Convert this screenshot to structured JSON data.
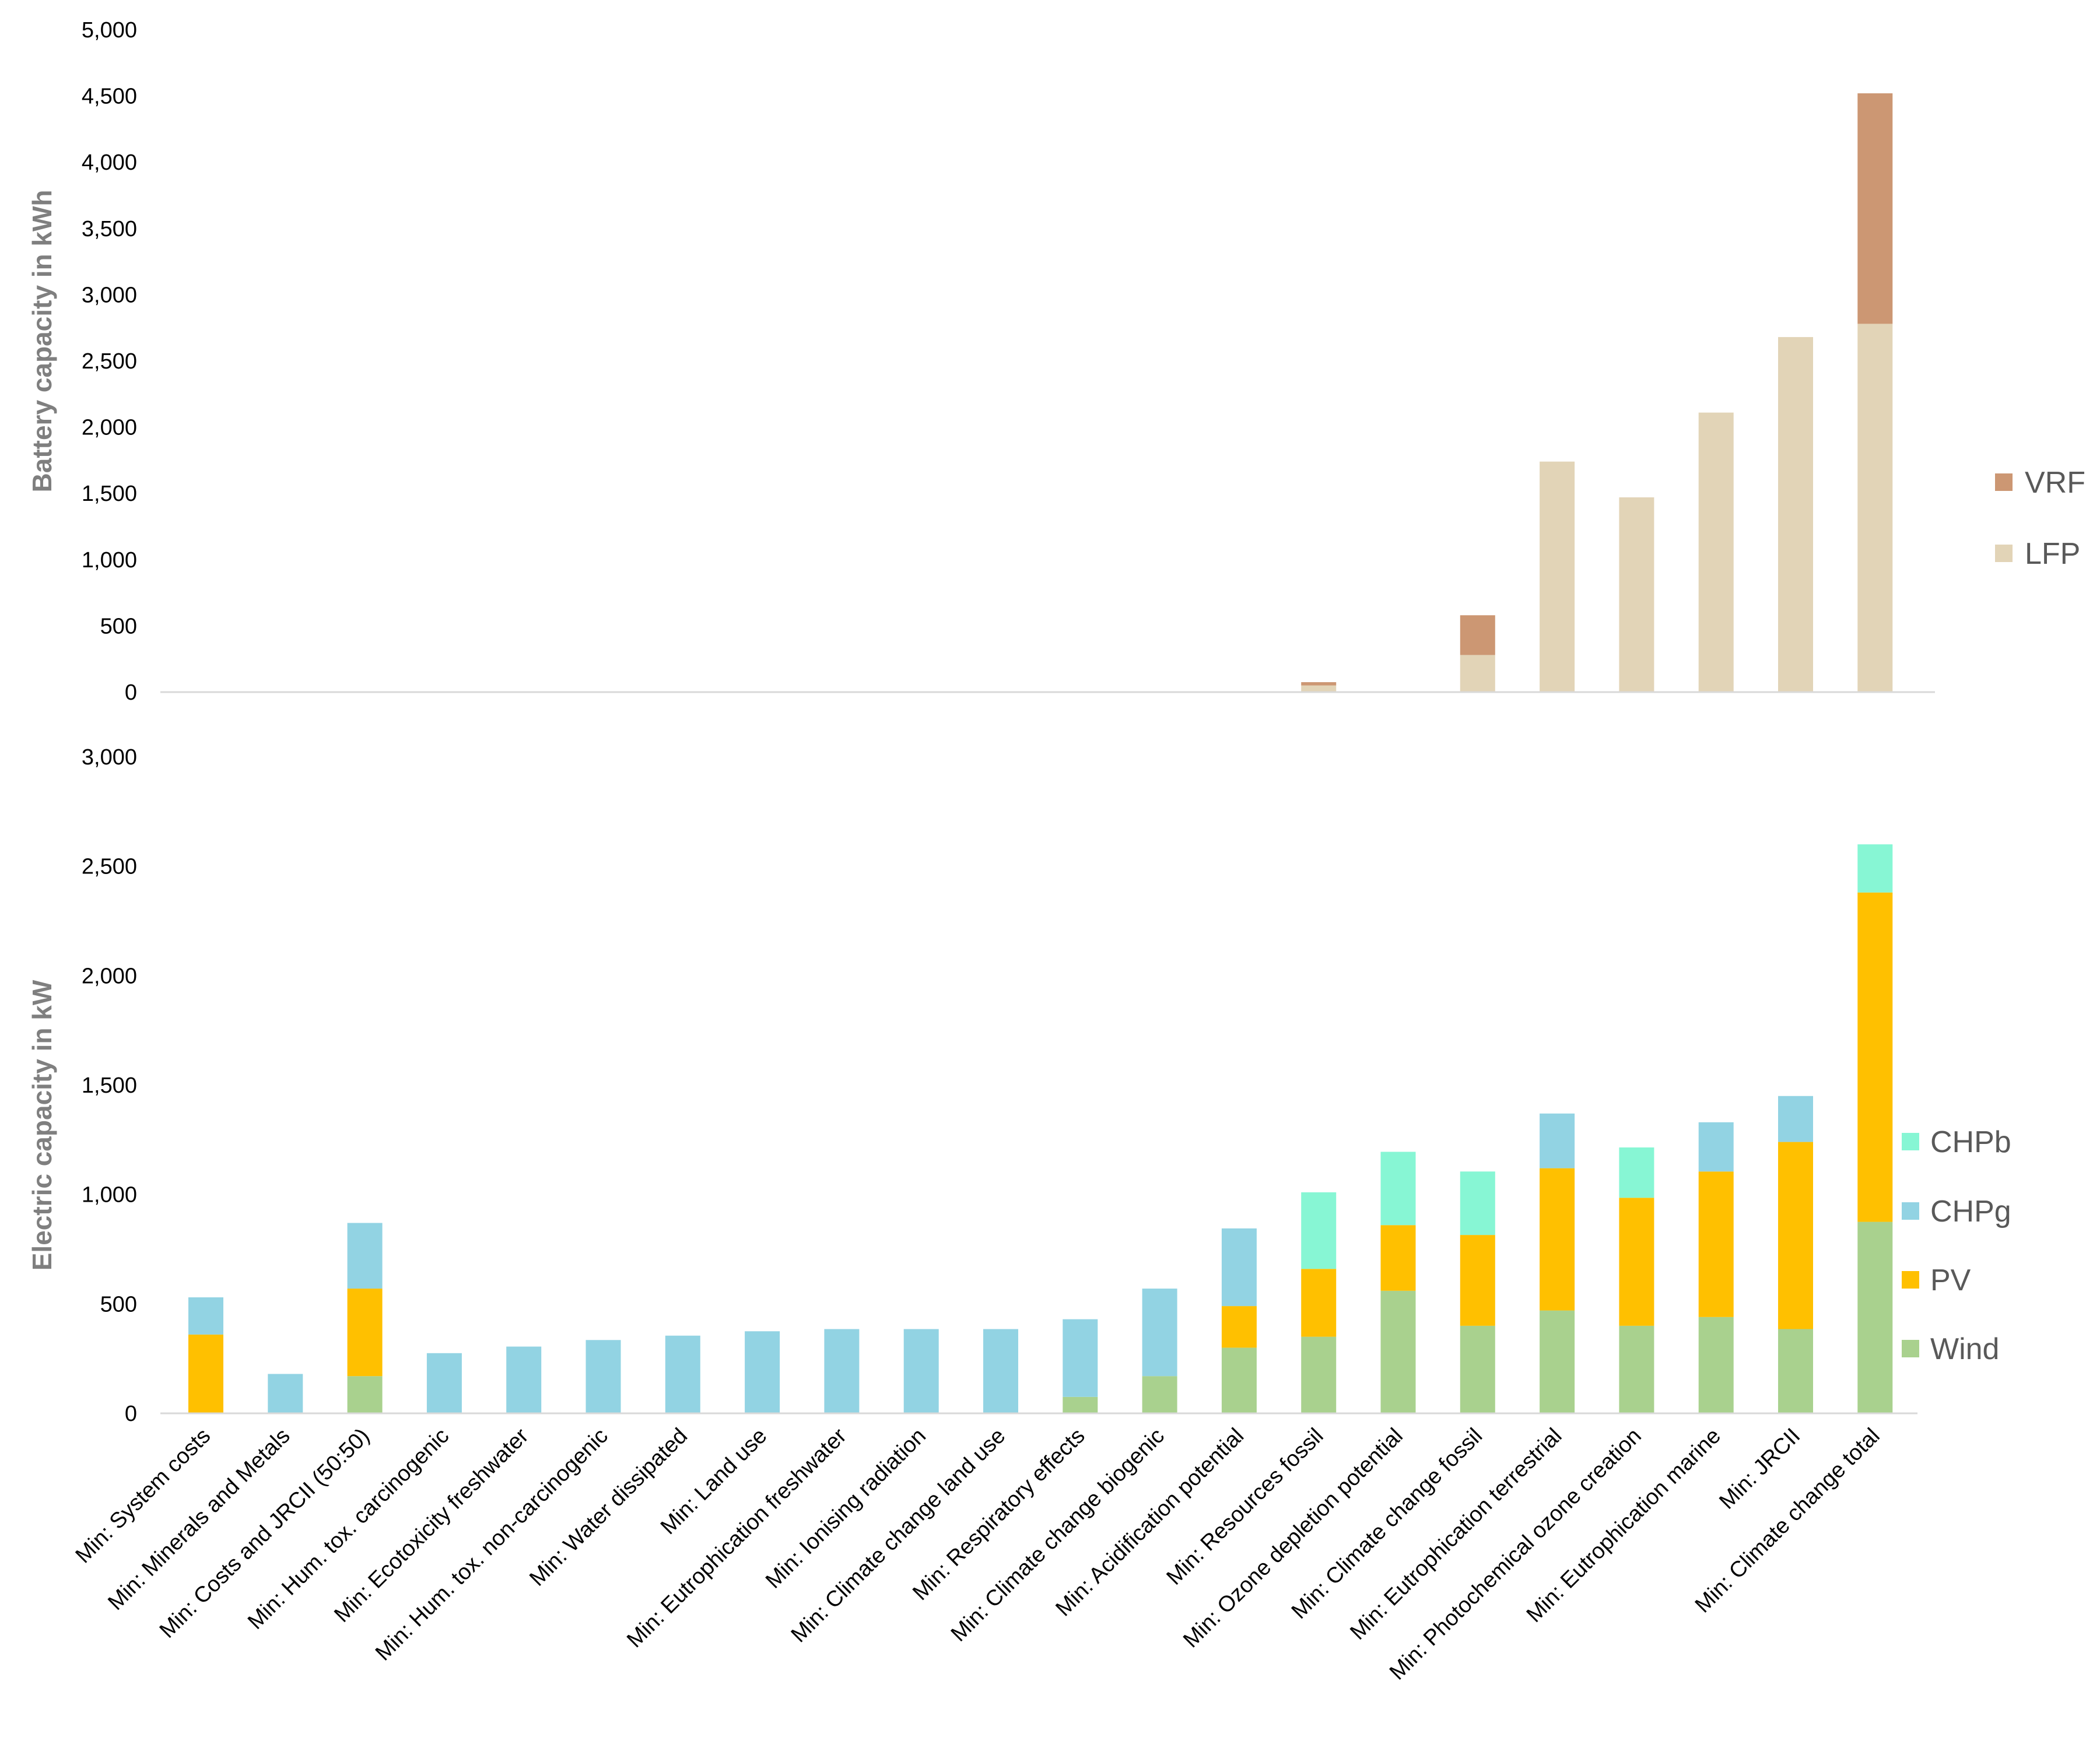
{
  "chart_data": [
    {
      "type": "bar",
      "stacked": true,
      "title": "",
      "xlabel": "",
      "ylabel": "Battery capacity in kWh",
      "ylim": [
        0,
        5000
      ],
      "yticks": [
        0,
        500,
        1000,
        1500,
        2000,
        2500,
        3000,
        3500,
        4000,
        4500,
        5000
      ],
      "ytick_labels": [
        "0",
        "500",
        "1,000",
        "1,500",
        "2,000",
        "2,500",
        "3,000",
        "3,500",
        "4,000",
        "4,500",
        "5,000"
      ],
      "legend_position": "right",
      "legend_order": [
        "VRF",
        "LFP"
      ],
      "categories": [
        "Min: System costs",
        "Min: Minerals and Metals",
        "Min: Costs and JRCII (50:50)",
        "Min: Hum. tox. carcinogenic",
        "Min: Ecotoxicity freshwater",
        "Min: Hum. tox. non-carcinogenic",
        "Min: Water dissipated",
        "Min: Land use",
        "Min: Eutrophication freshwater",
        "Min: Ionising radiation",
        "Min: Climate change land use",
        "Min: Respiratory effects",
        "Min: Climate change biogenic",
        "Min: Acidification potential",
        "Min: Resources fossil",
        "Min: Ozone depletion potential",
        "Min: Climate change fossil",
        "Min: Eutrophication terrestrial",
        "Min: Photochemical ozone creation",
        "Min: Eutrophication marine",
        "Min: JRCII",
        "Min: Climate change total"
      ],
      "series": [
        {
          "name": "LFP",
          "color": "#e2d4b7",
          "values": [
            0,
            0,
            0,
            0,
            0,
            0,
            0,
            0,
            0,
            0,
            0,
            0,
            0,
            0,
            50,
            0,
            280,
            1740,
            1470,
            2110,
            2680,
            2780
          ]
        },
        {
          "name": "VRF",
          "color": "#cc9773",
          "values": [
            0,
            0,
            0,
            0,
            0,
            0,
            0,
            0,
            0,
            0,
            0,
            0,
            0,
            0,
            25,
            0,
            300,
            0,
            0,
            0,
            0,
            1740
          ]
        }
      ]
    },
    {
      "type": "bar",
      "stacked": true,
      "title": "",
      "xlabel": "",
      "ylabel": "Electric capacity in kW",
      "ylim": [
        0,
        3000
      ],
      "yticks": [
        0,
        500,
        1000,
        1500,
        2000,
        2500,
        3000
      ],
      "ytick_labels": [
        "0",
        "500",
        "1,000",
        "1,500",
        "2,000",
        "2,500",
        "3,000"
      ],
      "legend_position": "right",
      "legend_order": [
        "CHPb",
        "CHPg",
        "PV",
        "Wind"
      ],
      "categories": [
        "Min: System costs",
        "Min: Minerals and Metals",
        "Min: Costs and JRCII (50:50)",
        "Min: Hum. tox. carcinogenic",
        "Min: Ecotoxicity freshwater",
        "Min: Hum. tox. non-carcinogenic",
        "Min: Water dissipated",
        "Min: Land use",
        "Min: Eutrophication freshwater",
        "Min: Ionising radiation",
        "Min: Climate change land use",
        "Min: Respiratory effects",
        "Min: Climate change biogenic",
        "Min: Acidification potential",
        "Min: Resources fossil",
        "Min: Ozone depletion potential",
        "Min: Climate change fossil",
        "Min: Eutrophication terrestrial",
        "Min: Photochemical ozone creation",
        "Min: Eutrophication marine",
        "Min: JRCII",
        "Min: Climate change total"
      ],
      "series": [
        {
          "name": "Wind",
          "color": "#a9d18e",
          "values": [
            0,
            0,
            170,
            0,
            0,
            0,
            0,
            0,
            0,
            0,
            0,
            75,
            170,
            300,
            350,
            560,
            400,
            470,
            400,
            440,
            385,
            875
          ]
        },
        {
          "name": "PV",
          "color": "#ffc000",
          "values": [
            360,
            0,
            400,
            0,
            0,
            0,
            0,
            0,
            0,
            0,
            0,
            0,
            0,
            190,
            310,
            300,
            415,
            650,
            585,
            665,
            855,
            1505
          ]
        },
        {
          "name": "CHPg",
          "color": "#92d3e3",
          "values": [
            170,
            180,
            300,
            275,
            305,
            335,
            355,
            375,
            385,
            385,
            385,
            355,
            400,
            355,
            0,
            0,
            0,
            250,
            0,
            225,
            210,
            0
          ]
        },
        {
          "name": "CHPb",
          "color": "#87f6d4",
          "values": [
            0,
            0,
            0,
            0,
            0,
            0,
            0,
            0,
            0,
            0,
            0,
            0,
            0,
            0,
            350,
            335,
            290,
            0,
            230,
            0,
            0,
            220
          ]
        }
      ]
    }
  ]
}
